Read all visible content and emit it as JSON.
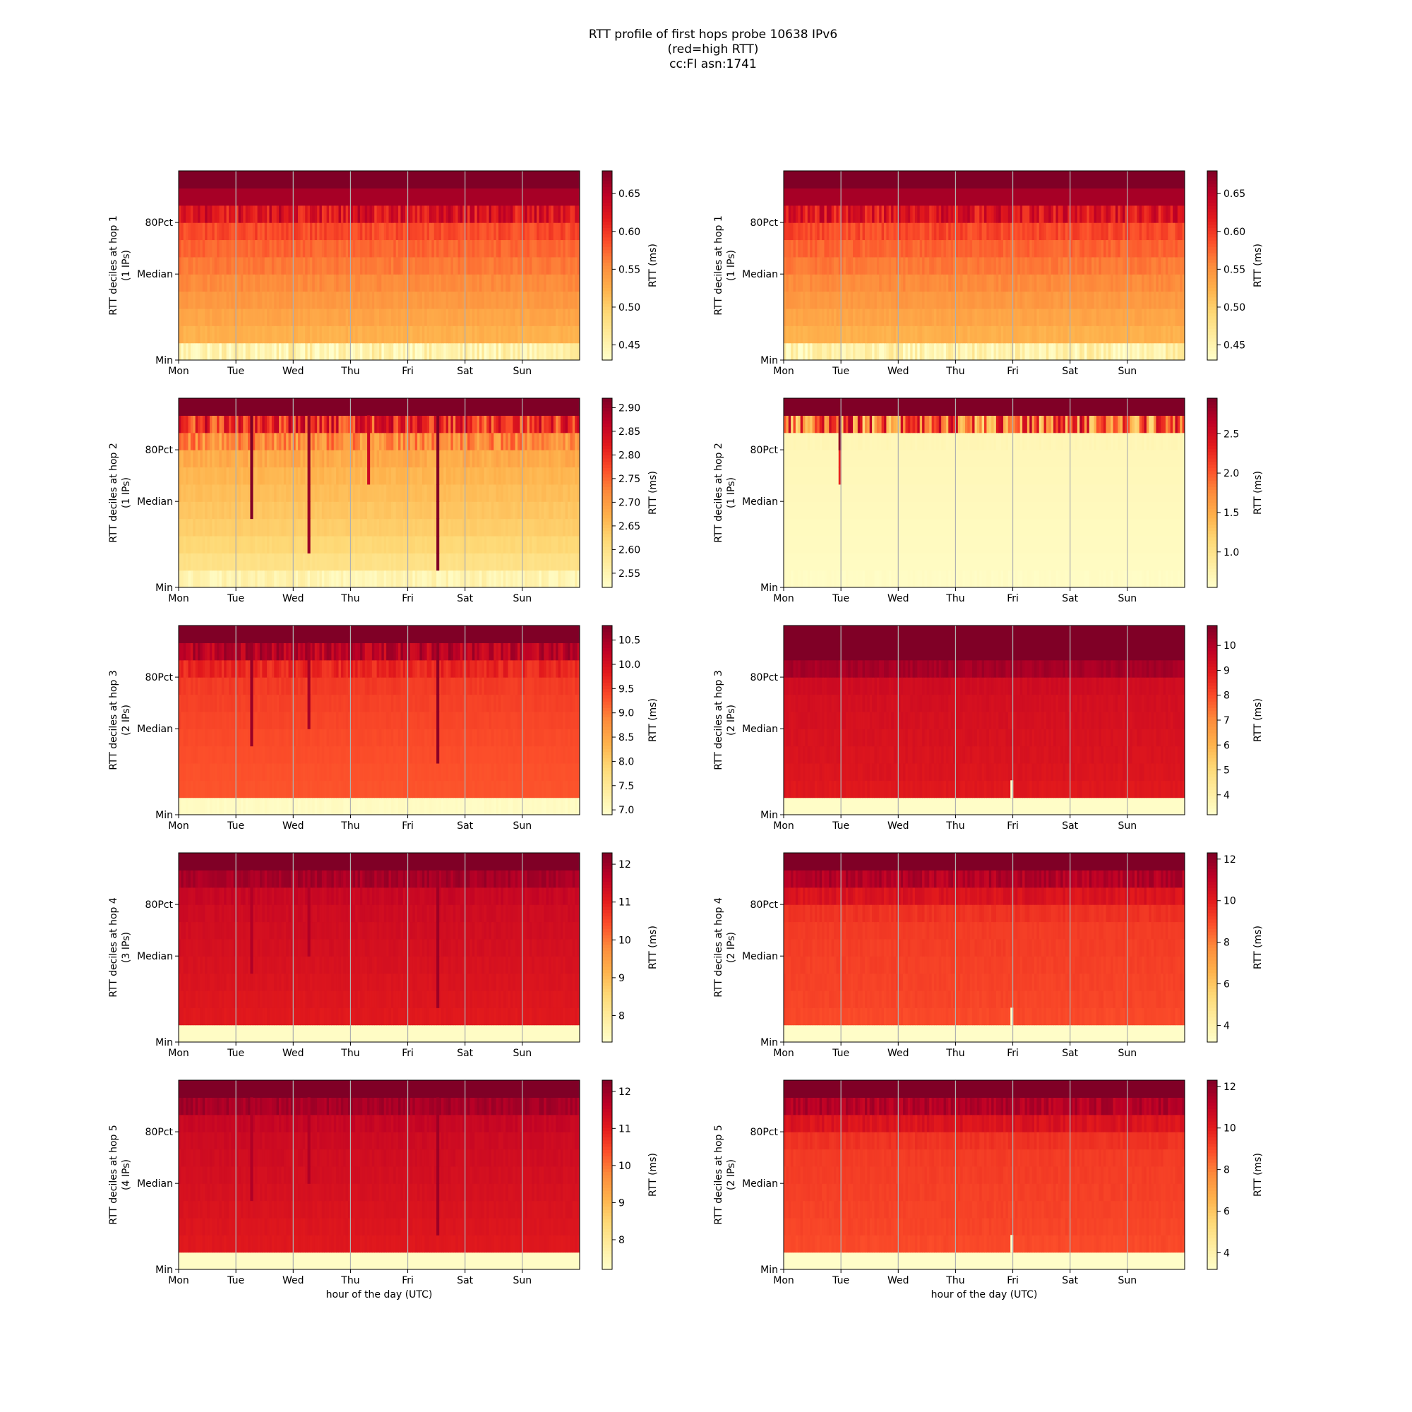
{
  "title_lines": [
    "RTT profile of first hops probe 10638 IPv6",
    "(red=high RTT)",
    "cc:FI asn:1741"
  ],
  "colormap": {
    "name": "YlOrRd",
    "stops": [
      "#ffffcc",
      "#ffeda0",
      "#fed976",
      "#feb24c",
      "#fd8d3c",
      "#fc4e2a",
      "#e31a1c",
      "#bd0026",
      "#800026"
    ]
  },
  "chart_data": [
    {
      "type": "heatmap",
      "column": "left",
      "hop": 1,
      "ylabel": "RTT deciles at hop 1",
      "ylabel_sub": "(1 IPs)",
      "xlabel": "",
      "x_ticks": [
        "Mon",
        "Tue",
        "Wed",
        "Thu",
        "Fri",
        "Sat",
        "Sun"
      ],
      "y_ticks": [
        "Min",
        "Median",
        "80Pct"
      ],
      "colorbar_label": "RTT (ms)",
      "colorbar_range": [
        0.43,
        0.68
      ],
      "colorbar_ticks": [
        "0.45",
        "0.50",
        "0.55",
        "0.60",
        "0.65"
      ],
      "decile_values": [
        0.45,
        0.525,
        0.535,
        0.545,
        0.555,
        0.565,
        0.575,
        0.59,
        0.625,
        0.66,
        0.7
      ],
      "noise": [
        0.025,
        0.005,
        0.005,
        0.005,
        0.006,
        0.006,
        0.008,
        0.012,
        0.03,
        0,
        0
      ]
    },
    {
      "type": "heatmap",
      "column": "right",
      "hop": 1,
      "ylabel": "RTT deciles at hop 1",
      "ylabel_sub": "(1 IPs)",
      "xlabel": "",
      "x_ticks": [
        "Mon",
        "Tue",
        "Wed",
        "Thu",
        "Fri",
        "Sat",
        "Sun"
      ],
      "y_ticks": [
        "Min",
        "Median",
        "80Pct"
      ],
      "colorbar_label": "RTT (ms)",
      "colorbar_range": [
        0.43,
        0.68
      ],
      "colorbar_ticks": [
        "0.45",
        "0.50",
        "0.55",
        "0.60",
        "0.65"
      ],
      "decile_values": [
        0.45,
        0.525,
        0.535,
        0.545,
        0.555,
        0.565,
        0.575,
        0.59,
        0.625,
        0.66,
        0.7
      ],
      "noise": [
        0.025,
        0.005,
        0.005,
        0.005,
        0.006,
        0.006,
        0.008,
        0.012,
        0.03,
        0,
        0
      ]
    },
    {
      "type": "heatmap",
      "column": "left",
      "hop": 2,
      "ylabel": "RTT deciles at hop 2",
      "ylabel_sub": "(1 IPs)",
      "xlabel": "",
      "x_ticks": [
        "Mon",
        "Tue",
        "Wed",
        "Thu",
        "Fri",
        "Sat",
        "Sun"
      ],
      "y_ticks": [
        "Min",
        "Median",
        "80Pct"
      ],
      "colorbar_label": "RTT (ms)",
      "colorbar_range": [
        2.52,
        2.92
      ],
      "colorbar_ticks": [
        "2.55",
        "2.60",
        "2.65",
        "2.70",
        "2.75",
        "2.80",
        "2.85",
        "2.90"
      ],
      "decile_values": [
        2.55,
        2.6,
        2.62,
        2.635,
        2.645,
        2.655,
        2.665,
        2.68,
        2.72,
        2.8,
        2.95
      ],
      "noise": [
        0.02,
        0.005,
        0.005,
        0.005,
        0.006,
        0.006,
        0.008,
        0.015,
        0.05,
        0.08,
        0
      ],
      "spikes": [
        {
          "day": 1.25,
          "from_row": 4,
          "to_row": 9,
          "value": 2.92
        },
        {
          "day": 2.27,
          "from_row": 2,
          "to_row": 9,
          "value": 2.9
        },
        {
          "day": 3.3,
          "from_row": 6,
          "to_row": 9,
          "value": 2.85
        },
        {
          "day": 4.5,
          "from_row": 1,
          "to_row": 9,
          "value": 2.92
        }
      ]
    },
    {
      "type": "heatmap",
      "column": "right",
      "hop": 2,
      "ylabel": "RTT deciles at hop 2",
      "ylabel_sub": "(1 IPs)",
      "xlabel": "",
      "x_ticks": [
        "Mon",
        "Tue",
        "Wed",
        "Thu",
        "Fri",
        "Sat",
        "Sun"
      ],
      "y_ticks": [
        "Min",
        "Median",
        "80Pct"
      ],
      "colorbar_label": "RTT (ms)",
      "colorbar_range": [
        0.55,
        2.95
      ],
      "colorbar_ticks": [
        "1.0",
        "1.5",
        "2.0",
        "2.5"
      ],
      "decile_values": [
        0.6,
        0.62,
        0.63,
        0.64,
        0.65,
        0.66,
        0.67,
        0.68,
        0.7,
        1.9,
        3.0
      ],
      "noise": [
        0.02,
        0,
        0,
        0,
        0,
        0,
        0,
        0,
        0.02,
        0.8,
        0
      ],
      "spikes": [
        {
          "day": 0.97,
          "from_row": 6,
          "to_row": 9,
          "value": 2.3
        },
        {
          "day": 0.97,
          "from_row": 8,
          "to_row": 9,
          "value": 2.9
        }
      ]
    },
    {
      "type": "heatmap",
      "column": "left",
      "hop": 3,
      "ylabel": "RTT deciles at hop 3",
      "ylabel_sub": "(2 IPs)",
      "xlabel": "",
      "x_ticks": [
        "Mon",
        "Tue",
        "Wed",
        "Thu",
        "Fri",
        "Sat",
        "Sun"
      ],
      "y_ticks": [
        "Min",
        "Median",
        "80Pct"
      ],
      "colorbar_label": "RTT (ms)",
      "colorbar_range": [
        6.9,
        10.8
      ],
      "colorbar_ticks": [
        "7.0",
        "7.5",
        "8.0",
        "8.5",
        "9.0",
        "9.5",
        "10.0",
        "10.5"
      ],
      "decile_values": [
        7.0,
        9.3,
        9.32,
        9.35,
        9.38,
        9.42,
        9.46,
        9.52,
        9.7,
        10.3,
        11.0
      ],
      "noise": [
        0.05,
        0.02,
        0.02,
        0.02,
        0.03,
        0.03,
        0.04,
        0.06,
        0.2,
        0.35,
        0
      ],
      "spikes": [
        {
          "day": 1.25,
          "from_row": 4,
          "to_row": 9,
          "value": 10.6
        },
        {
          "day": 2.27,
          "from_row": 5,
          "to_row": 9,
          "value": 10.5
        },
        {
          "day": 4.5,
          "from_row": 3,
          "to_row": 9,
          "value": 10.7
        }
      ]
    },
    {
      "type": "heatmap",
      "column": "right",
      "hop": 3,
      "ylabel": "RTT deciles at hop 3",
      "ylabel_sub": "(2 IPs)",
      "xlabel": "",
      "x_ticks": [
        "Mon",
        "Tue",
        "Wed",
        "Thu",
        "Fri",
        "Sat",
        "Sun"
      ],
      "y_ticks": [
        "Min",
        "Median",
        "80Pct"
      ],
      "colorbar_label": "RTT (ms)",
      "colorbar_range": [
        3.2,
        10.8
      ],
      "colorbar_ticks": [
        "4",
        "5",
        "6",
        "7",
        "8",
        "9",
        "10"
      ],
      "decile_values": [
        3.3,
        9.0,
        9.1,
        9.15,
        9.2,
        9.25,
        9.3,
        9.4,
        10.2,
        10.8,
        11.0
      ],
      "noise": [
        0,
        0.1,
        0.1,
        0.1,
        0.1,
        0.1,
        0.1,
        0.1,
        0.2,
        0,
        0
      ],
      "spikes": [
        {
          "day": 3.97,
          "from_row": 1,
          "to_row": 1,
          "value": 3.3
        }
      ]
    },
    {
      "type": "heatmap",
      "column": "left",
      "hop": 4,
      "ylabel": "RTT deciles at hop 4",
      "ylabel_sub": "(3 IPs)",
      "xlabel": "",
      "x_ticks": [
        "Mon",
        "Tue",
        "Wed",
        "Thu",
        "Fri",
        "Sat",
        "Sun"
      ],
      "y_ticks": [
        "Min",
        "Median",
        "80Pct"
      ],
      "colorbar_label": "RTT (ms)",
      "colorbar_range": [
        7.3,
        12.3
      ],
      "colorbar_ticks": [
        "8",
        "9",
        "10",
        "11",
        "12"
      ],
      "decile_values": [
        7.4,
        11.1,
        11.15,
        11.2,
        11.25,
        11.3,
        11.35,
        11.4,
        11.5,
        11.9,
        12.4
      ],
      "noise": [
        0,
        0.05,
        0.05,
        0.05,
        0.05,
        0.06,
        0.06,
        0.07,
        0.1,
        0.2,
        0
      ],
      "spikes": [
        {
          "day": 1.25,
          "from_row": 4,
          "to_row": 9,
          "value": 11.8
        },
        {
          "day": 2.27,
          "from_row": 5,
          "to_row": 9,
          "value": 11.8
        },
        {
          "day": 4.5,
          "from_row": 2,
          "to_row": 9,
          "value": 12.0
        }
      ]
    },
    {
      "type": "heatmap",
      "column": "right",
      "hop": 4,
      "ylabel": "RTT deciles at hop 4",
      "ylabel_sub": "(2 IPs)",
      "xlabel": "",
      "x_ticks": [
        "Mon",
        "Tue",
        "Wed",
        "Thu",
        "Fri",
        "Sat",
        "Sun"
      ],
      "y_ticks": [
        "Min",
        "Median",
        "80Pct"
      ],
      "colorbar_label": "RTT (ms)",
      "colorbar_range": [
        3.2,
        12.3
      ],
      "colorbar_ticks": [
        "4",
        "6",
        "8",
        "10",
        "12"
      ],
      "decile_values": [
        3.3,
        9.0,
        9.1,
        9.15,
        9.2,
        9.25,
        9.3,
        9.5,
        10.3,
        11.3,
        12.4
      ],
      "noise": [
        0,
        0.1,
        0.1,
        0.1,
        0.1,
        0.1,
        0.1,
        0.15,
        0.3,
        0.5,
        0
      ],
      "spikes": [
        {
          "day": 3.97,
          "from_row": 1,
          "to_row": 1,
          "value": 3.3
        }
      ]
    },
    {
      "type": "heatmap",
      "column": "left",
      "hop": 5,
      "ylabel": "RTT deciles at hop 5",
      "ylabel_sub": "(4 IPs)",
      "xlabel": "hour of the day (UTC)",
      "x_ticks": [
        "Mon",
        "Tue",
        "Wed",
        "Thu",
        "Fri",
        "Sat",
        "Sun"
      ],
      "y_ticks": [
        "Min",
        "Median",
        "80Pct"
      ],
      "colorbar_label": "RTT (ms)",
      "colorbar_range": [
        7.2,
        12.3
      ],
      "colorbar_ticks": [
        "8",
        "9",
        "10",
        "11",
        "12"
      ],
      "decile_values": [
        7.3,
        11.1,
        11.15,
        11.2,
        11.25,
        11.3,
        11.35,
        11.4,
        11.5,
        11.9,
        12.4
      ],
      "noise": [
        0,
        0.05,
        0.05,
        0.05,
        0.05,
        0.06,
        0.06,
        0.07,
        0.1,
        0.2,
        0
      ],
      "spikes": [
        {
          "day": 1.25,
          "from_row": 4,
          "to_row": 9,
          "value": 11.8
        },
        {
          "day": 2.27,
          "from_row": 5,
          "to_row": 9,
          "value": 11.8
        },
        {
          "day": 4.5,
          "from_row": 2,
          "to_row": 9,
          "value": 12.0
        }
      ]
    },
    {
      "type": "heatmap",
      "column": "right",
      "hop": 5,
      "ylabel": "RTT deciles at hop 5",
      "ylabel_sub": "(2 IPs)",
      "xlabel": "hour of the day (UTC)",
      "x_ticks": [
        "Mon",
        "Tue",
        "Wed",
        "Thu",
        "Fri",
        "Sat",
        "Sun"
      ],
      "y_ticks": [
        "Min",
        "Median",
        "80Pct"
      ],
      "colorbar_label": "RTT (ms)",
      "colorbar_range": [
        3.2,
        12.3
      ],
      "colorbar_ticks": [
        "4",
        "6",
        "8",
        "10",
        "12"
      ],
      "decile_values": [
        3.3,
        9.0,
        9.1,
        9.15,
        9.2,
        9.25,
        9.3,
        9.5,
        10.3,
        11.3,
        12.4
      ],
      "noise": [
        0,
        0.1,
        0.1,
        0.1,
        0.1,
        0.1,
        0.1,
        0.15,
        0.3,
        0.5,
        0
      ],
      "spikes": [
        {
          "day": 3.97,
          "from_row": 1,
          "to_row": 1,
          "value": 3.3
        }
      ]
    }
  ]
}
